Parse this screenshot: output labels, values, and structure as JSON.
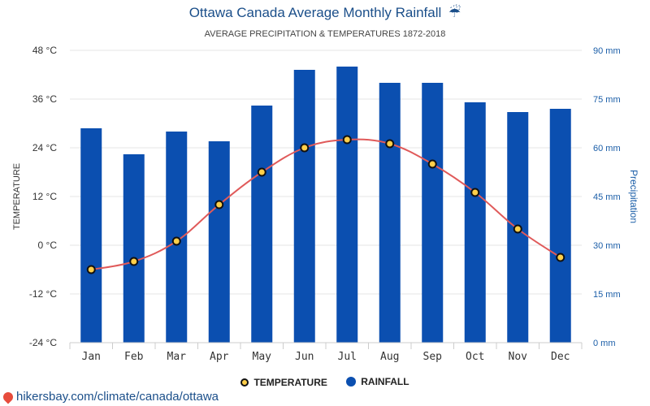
{
  "page": {
    "title": "Ottawa Canada Average Monthly Rainfall",
    "title_icon": "☔",
    "subtitle": "AVERAGE PRECIPITATION & TEMPERATURES 1872-2018",
    "source_url": "hikersbay.com/climate/canada/ottawa"
  },
  "chart_data": {
    "type": "bar",
    "categories": [
      "Jan",
      "Feb",
      "Mar",
      "Apr",
      "May",
      "Jun",
      "Jul",
      "Aug",
      "Sep",
      "Oct",
      "Nov",
      "Dec"
    ],
    "series": [
      {
        "name": "RAINFALL",
        "type": "bar",
        "axis": "right",
        "unit": "mm",
        "values": [
          66,
          58,
          65,
          62,
          73,
          84,
          85,
          80,
          80,
          74,
          71,
          72
        ],
        "color": "#0b4fb0"
      },
      {
        "name": "TEMPERATURE",
        "type": "line",
        "axis": "left",
        "unit": "°C",
        "values": [
          -6,
          -4,
          1,
          10,
          18,
          24,
          26,
          25,
          20,
          13,
          4,
          -3
        ],
        "line_color": "#e05a5a",
        "marker_fill": "#ffcf4a",
        "marker_stroke": "#111111"
      }
    ],
    "y_left": {
      "label": "TEMPERATURE",
      "range": [
        -24,
        48
      ],
      "ticks": [
        48,
        36,
        24,
        12,
        0,
        -12,
        -24
      ],
      "tick_labels": [
        "48 °C",
        "36 °C",
        "24 °C",
        "12 °C",
        "0 °C",
        "-12 °C",
        "-24 °C"
      ]
    },
    "y_right": {
      "label": "Precipitation",
      "range": [
        0,
        90
      ],
      "ticks": [
        90,
        75,
        60,
        45,
        30,
        15,
        0
      ],
      "tick_labels": [
        "90 mm",
        "75 mm",
        "60 mm",
        "45 mm",
        "30 mm",
        "15 mm",
        "0 mm"
      ]
    },
    "legend": [
      "TEMPERATURE",
      "RAINFALL"
    ],
    "grid": true
  }
}
